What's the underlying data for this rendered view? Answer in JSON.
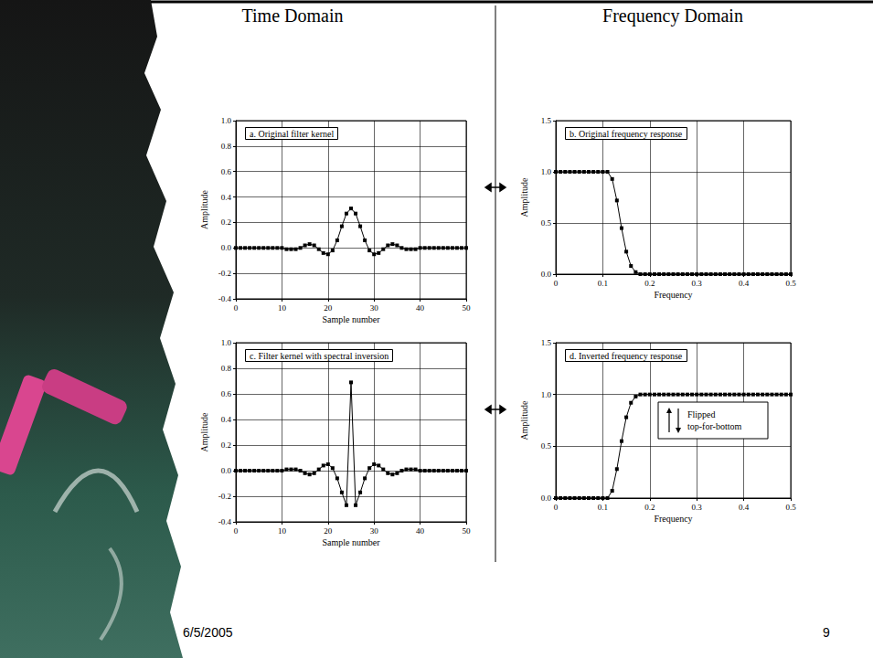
{
  "slide": {
    "headings": [
      "Time Domain",
      "Frequency Domain"
    ],
    "date": "6/5/2005",
    "page": "9"
  },
  "chart_data": [
    {
      "type": "line",
      "title": "a. Original filter kernel",
      "x_label": "Sample number",
      "y_label": "Amplitude",
      "x": [
        0,
        1,
        2,
        3,
        4,
        5,
        6,
        7,
        8,
        9,
        10,
        11,
        12,
        13,
        14,
        15,
        16,
        17,
        18,
        19,
        20,
        21,
        22,
        23,
        24,
        25,
        26,
        27,
        28,
        29,
        30,
        31,
        32,
        33,
        34,
        35,
        36,
        37,
        38,
        39,
        40,
        41,
        42,
        43,
        44,
        45,
        46,
        47,
        48,
        49,
        50
      ],
      "values": [
        0,
        0,
        0,
        0,
        0,
        0,
        0,
        0,
        0,
        0,
        0,
        -0.01,
        -0.01,
        -0.01,
        0,
        0.02,
        0.03,
        0.02,
        -0.01,
        -0.04,
        -0.05,
        -0.02,
        0.06,
        0.17,
        0.27,
        0.31,
        0.27,
        0.17,
        0.06,
        -0.02,
        -0.05,
        -0.04,
        -0.01,
        0.02,
        0.03,
        0.02,
        0,
        -0.01,
        -0.01,
        -0.01,
        0,
        0,
        0,
        0,
        0,
        0,
        0,
        0,
        0,
        0,
        0
      ],
      "color": "#000000",
      "marker": "square",
      "line_style": "solid",
      "xlim": [
        0,
        50
      ],
      "ylim": [
        -0.4,
        1.0
      ],
      "xticks": [
        0,
        10,
        20,
        30,
        40,
        50
      ],
      "yticks": [
        -0.4,
        -0.2,
        {
          "value": 0,
          "label": "0.0"
        },
        0.2,
        0.4,
        0.6,
        0.8,
        {
          "value": 1,
          "label": "1.0"
        }
      ],
      "grid": true
    },
    {
      "type": "line",
      "title": "b. Original frequency response",
      "x_label": "Frequency",
      "y_label": "Amplitude",
      "x": [
        0,
        0.01,
        0.02,
        0.03,
        0.04,
        0.05,
        0.06,
        0.07,
        0.08,
        0.09,
        0.1,
        0.11,
        0.12,
        0.13,
        0.14,
        0.15,
        0.16,
        0.17,
        0.18,
        0.19,
        0.2,
        0.21,
        0.22,
        0.23,
        0.24,
        0.25,
        0.26,
        0.27,
        0.28,
        0.29,
        0.3,
        0.31,
        0.32,
        0.33,
        0.34,
        0.35,
        0.36,
        0.37,
        0.38,
        0.39,
        0.4,
        0.41,
        0.42,
        0.43,
        0.44,
        0.45,
        0.46,
        0.47,
        0.48,
        0.49,
        0.5
      ],
      "values": [
        1,
        1,
        1,
        1,
        1,
        1,
        1,
        1,
        1,
        1,
        1,
        1,
        0.93,
        0.72,
        0.45,
        0.22,
        0.08,
        0.02,
        0,
        0,
        0,
        0,
        0,
        0,
        0,
        0,
        0,
        0,
        0,
        0,
        0,
        0,
        0,
        0,
        0,
        0,
        0,
        0,
        0,
        0,
        0,
        0,
        0,
        0,
        0,
        0,
        0,
        0,
        0,
        0,
        0
      ],
      "color": "#000000",
      "marker": "square",
      "line_style": "solid",
      "xlim": [
        0,
        0.5
      ],
      "ylim": [
        0,
        1.5
      ],
      "xticks": [
        0,
        0.1,
        0.2,
        0.3,
        0.4,
        0.5
      ],
      "yticks": [
        {
          "value": 0,
          "label": "0.0"
        },
        0.5,
        {
          "value": 1,
          "label": "1.0"
        },
        1.5
      ],
      "grid": true
    },
    {
      "type": "line",
      "title": "c. Filter kernel with spectral inversion",
      "x_label": "Sample number",
      "y_label": "Amplitude",
      "x": [
        0,
        1,
        2,
        3,
        4,
        5,
        6,
        7,
        8,
        9,
        10,
        11,
        12,
        13,
        14,
        15,
        16,
        17,
        18,
        19,
        20,
        21,
        22,
        23,
        24,
        25,
        26,
        27,
        28,
        29,
        30,
        31,
        32,
        33,
        34,
        35,
        36,
        37,
        38,
        39,
        40,
        41,
        42,
        43,
        44,
        45,
        46,
        47,
        48,
        49,
        50
      ],
      "values": [
        0,
        0,
        0,
        0,
        0,
        0,
        0,
        0,
        0,
        0,
        0,
        0.01,
        0.01,
        0.01,
        0,
        -0.02,
        -0.03,
        -0.02,
        0.01,
        0.04,
        0.05,
        0.02,
        -0.06,
        -0.17,
        -0.27,
        0.69,
        -0.27,
        -0.17,
        -0.06,
        0.02,
        0.05,
        0.04,
        0.01,
        -0.02,
        -0.03,
        -0.02,
        0,
        0.01,
        0.01,
        0.01,
        0,
        0,
        0,
        0,
        0,
        0,
        0,
        0,
        0,
        0,
        0
      ],
      "color": "#000000",
      "marker": "square",
      "line_style": "solid",
      "xlim": [
        0,
        50
      ],
      "ylim": [
        -0.4,
        1.0
      ],
      "xticks": [
        0,
        10,
        20,
        30,
        40,
        50
      ],
      "yticks": [
        -0.4,
        -0.2,
        {
          "value": 0,
          "label": "0.0"
        },
        0.2,
        0.4,
        0.6,
        0.8,
        {
          "value": 1,
          "label": "1.0"
        }
      ],
      "grid": true
    },
    {
      "type": "line",
      "title": "d. Inverted frequency response",
      "x_label": "Frequency",
      "y_label": "Amplitude",
      "x": [
        0,
        0.01,
        0.02,
        0.03,
        0.04,
        0.05,
        0.06,
        0.07,
        0.08,
        0.09,
        0.1,
        0.11,
        0.12,
        0.13,
        0.14,
        0.15,
        0.16,
        0.17,
        0.18,
        0.19,
        0.2,
        0.21,
        0.22,
        0.23,
        0.24,
        0.25,
        0.26,
        0.27,
        0.28,
        0.29,
        0.3,
        0.31,
        0.32,
        0.33,
        0.34,
        0.35,
        0.36,
        0.37,
        0.38,
        0.39,
        0.4,
        0.41,
        0.42,
        0.43,
        0.44,
        0.45,
        0.46,
        0.47,
        0.48,
        0.49,
        0.5
      ],
      "values": [
        0,
        0,
        0,
        0,
        0,
        0,
        0,
        0,
        0,
        0,
        0,
        0,
        0.07,
        0.28,
        0.55,
        0.78,
        0.92,
        0.98,
        1,
        1,
        1,
        1,
        1,
        1,
        1,
        1,
        1,
        1,
        1,
        1,
        1,
        1,
        1,
        1,
        1,
        1,
        1,
        1,
        1,
        1,
        1,
        1,
        1,
        1,
        1,
        1,
        1,
        1,
        1,
        1,
        1
      ],
      "color": "#000000",
      "marker": "square",
      "line_style": "solid",
      "xlim": [
        0,
        0.5
      ],
      "ylim": [
        0,
        1.5
      ],
      "xticks": [
        0,
        0.1,
        0.2,
        0.3,
        0.4,
        0.5
      ],
      "yticks": [
        {
          "value": 0,
          "label": "0.0"
        },
        0.5,
        {
          "value": 1,
          "label": "1.0"
        },
        1.5
      ],
      "grid": true,
      "annotation": "Flipped top-for-bottom"
    }
  ]
}
